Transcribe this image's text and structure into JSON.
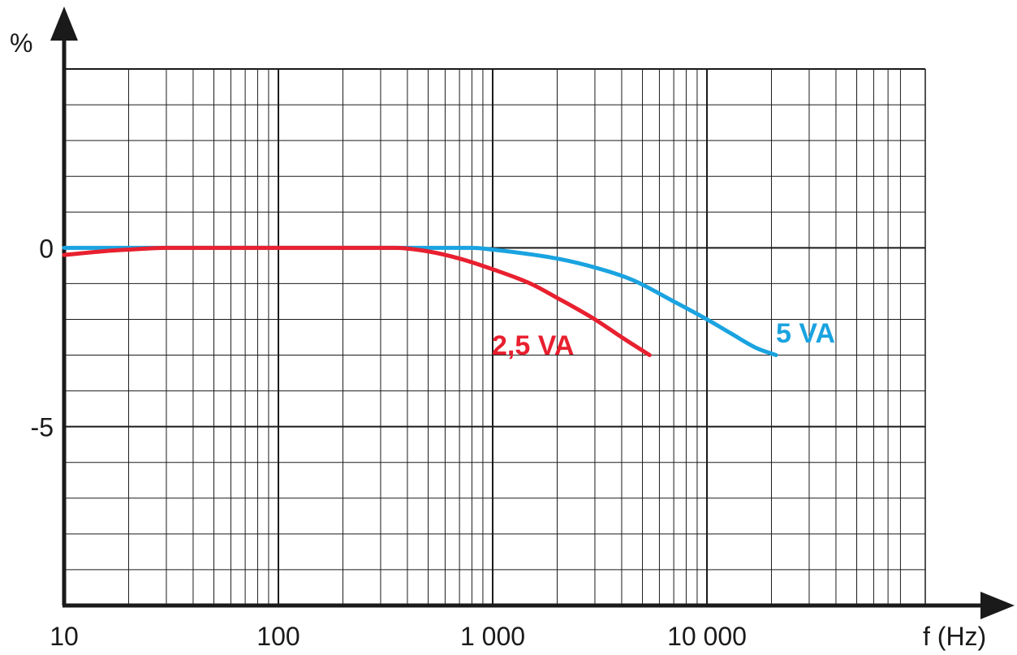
{
  "chart_data": {
    "type": "line",
    "x_scale": "log",
    "xlim": [
      10,
      80000
    ],
    "ylim": [
      -10,
      5
    ],
    "grid": true,
    "xlabel": "f (Hz)",
    "ylabel": "%",
    "x_ticks": [
      {
        "value": 10,
        "label": "10"
      },
      {
        "value": 100,
        "label": "100"
      },
      {
        "value": 1000,
        "label": "1 000"
      },
      {
        "value": 10000,
        "label": "10 000"
      }
    ],
    "y_ticks": [
      {
        "value": 0,
        "label": "0"
      },
      {
        "value": -5,
        "label": "-5"
      }
    ],
    "series": [
      {
        "name": "2,5 VA",
        "color": "#e8202f",
        "x": [
          10,
          15,
          20,
          30,
          50,
          100,
          200,
          350,
          500,
          700,
          1000,
          1500,
          2000,
          3000,
          4000,
          5400
        ],
        "y": [
          -0.2,
          -0.1,
          -0.05,
          0,
          0,
          0,
          0,
          0,
          -0.1,
          -0.3,
          -0.6,
          -1.0,
          -1.4,
          -2.0,
          -2.5,
          -3.0
        ]
      },
      {
        "name": "5 VA",
        "color": "#1aa3e0",
        "x": [
          10,
          100,
          500,
          800,
          1000,
          2000,
          3000,
          4500,
          7000,
          10000,
          13000,
          17000,
          21000
        ],
        "y": [
          0,
          0,
          0,
          0,
          -0.05,
          -0.3,
          -0.55,
          -0.9,
          -1.5,
          -2.0,
          -2.4,
          -2.8,
          -3.0
        ]
      }
    ]
  }
}
